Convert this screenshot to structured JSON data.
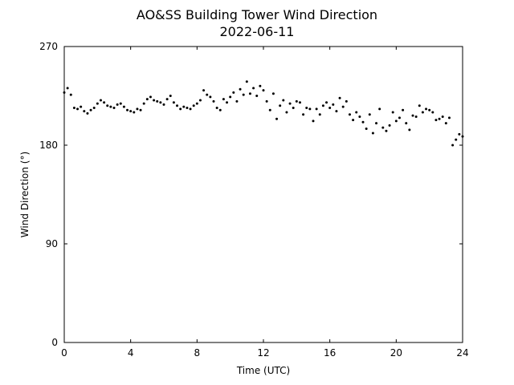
{
  "chart_data": {
    "type": "scatter",
    "title": "AO&SS Building Tower Wind Direction",
    "subtitle": "2022-06-11",
    "xlabel": "Time (UTC)",
    "ylabel": "Wind Direction (°)",
    "color": "#000000",
    "xlim": [
      0,
      24
    ],
    "xticks": [
      0,
      4,
      8,
      12,
      16,
      20,
      24
    ],
    "ylim": [
      0,
      270
    ],
    "yticks": [
      0,
      90,
      180,
      270
    ],
    "grid": false,
    "x": [
      0,
      0.2,
      0.4,
      0.6,
      0.8,
      1,
      1.2,
      1.4,
      1.6,
      1.8,
      2,
      2.2,
      2.4,
      2.6,
      2.8,
      3,
      3.2,
      3.4,
      3.6,
      3.8,
      4,
      4.2,
      4.4,
      4.6,
      4.8,
      5,
      5.2,
      5.4,
      5.6,
      5.8,
      6,
      6.2,
      6.4,
      6.6,
      6.8,
      7,
      7.2,
      7.4,
      7.6,
      7.8,
      8,
      8.2,
      8.4,
      8.6,
      8.8,
      9,
      9.2,
      9.4,
      9.6,
      9.8,
      10,
      10.2,
      10.4,
      10.6,
      10.8,
      11,
      11.2,
      11.4,
      11.6,
      11.8,
      12,
      12.2,
      12.4,
      12.6,
      12.8,
      13,
      13.2,
      13.4,
      13.6,
      13.8,
      14,
      14.2,
      14.4,
      14.6,
      14.8,
      15,
      15.2,
      15.4,
      15.6,
      15.8,
      16,
      16.2,
      16.4,
      16.6,
      16.8,
      17,
      17.2,
      17.4,
      17.6,
      17.8,
      18,
      18.2,
      18.4,
      18.6,
      18.8,
      19,
      19.2,
      19.4,
      19.6,
      19.8,
      20,
      20.2,
      20.4,
      20.6,
      20.8,
      21,
      21.2,
      21.4,
      21.6,
      21.8,
      22,
      22.2,
      22.4,
      22.6,
      22.8,
      23,
      23.2,
      23.4,
      23.6,
      23.8,
      24
    ],
    "values": [
      228,
      232,
      226,
      214,
      213,
      215,
      211,
      209,
      212,
      214,
      218,
      221,
      219,
      216,
      215,
      214,
      217,
      218,
      215,
      212,
      211,
      210,
      213,
      212,
      218,
      222,
      224,
      221,
      220,
      219,
      217,
      222,
      225,
      219,
      216,
      213,
      215,
      214,
      213,
      216,
      218,
      221,
      230,
      226,
      224,
      220,
      214,
      212,
      222,
      219,
      224,
      228,
      220,
      231,
      226,
      238,
      227,
      232,
      225,
      234,
      230,
      220,
      212,
      227,
      204,
      216,
      221,
      210,
      218,
      214,
      220,
      219,
      208,
      214,
      213,
      202,
      213,
      208,
      216,
      219,
      214,
      217,
      211,
      223,
      215,
      220,
      208,
      203,
      210,
      206,
      201,
      195,
      208,
      191,
      200,
      213,
      196,
      193,
      198,
      210,
      202,
      205,
      212,
      200,
      194,
      207,
      206,
      216,
      210,
      213,
      212,
      210,
      203,
      204,
      206,
      200,
      205,
      180,
      185,
      190,
      188
    ]
  }
}
